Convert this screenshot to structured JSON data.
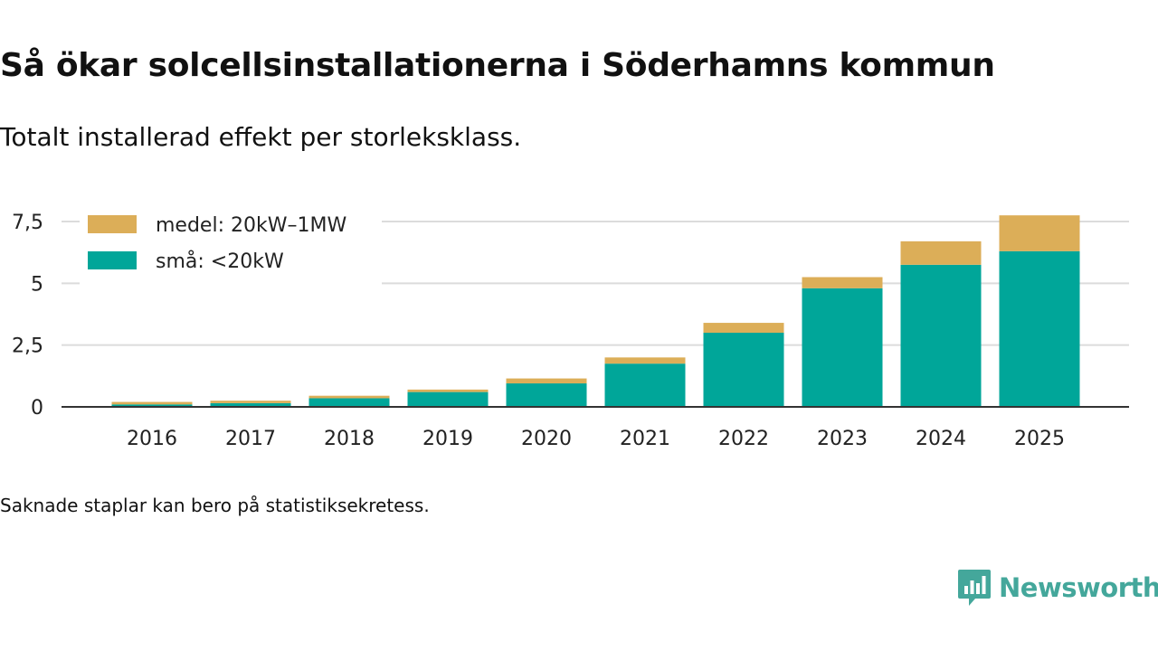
{
  "title": "Så ökar solcellsinstallationerna i Söderhamns kommun",
  "subtitle": "Totalt installerad effekt per storleksklass.",
  "footnote": "Saknade staplar kan bero på statistiksekretess.",
  "brand": "Newsworthy",
  "colors": {
    "small": "#00a699",
    "medium": "#dcae58",
    "grid": "#dcdcdc",
    "axis": "#333333",
    "brand": "#44a79b"
  },
  "chart_data": {
    "type": "bar",
    "stacked": true,
    "categories": [
      "2016",
      "2017",
      "2018",
      "2019",
      "2020",
      "2021",
      "2022",
      "2023",
      "2024",
      "2025"
    ],
    "series": [
      {
        "name": "små: <20kW",
        "color_key": "small",
        "values": [
          0.1,
          0.15,
          0.35,
          0.6,
          0.95,
          1.75,
          3.0,
          4.8,
          5.75,
          6.3
        ]
      },
      {
        "name": "medel: 20kW–1MW",
        "color_key": "medium",
        "values": [
          0.1,
          0.1,
          0.1,
          0.1,
          0.2,
          0.25,
          0.4,
          0.45,
          0.95,
          1.45
        ]
      }
    ],
    "yticks": [
      0,
      2.5,
      5,
      7.5
    ],
    "ytick_labels": [
      "0",
      "2,5",
      "5",
      "7,5"
    ],
    "ylim": [
      0,
      7.5
    ],
    "legend": [
      {
        "label": "medel: 20kW–1MW",
        "color_key": "medium"
      },
      {
        "label": "små: <20kW",
        "color_key": "small"
      }
    ],
    "legend_position": "top-left",
    "grid": true
  }
}
